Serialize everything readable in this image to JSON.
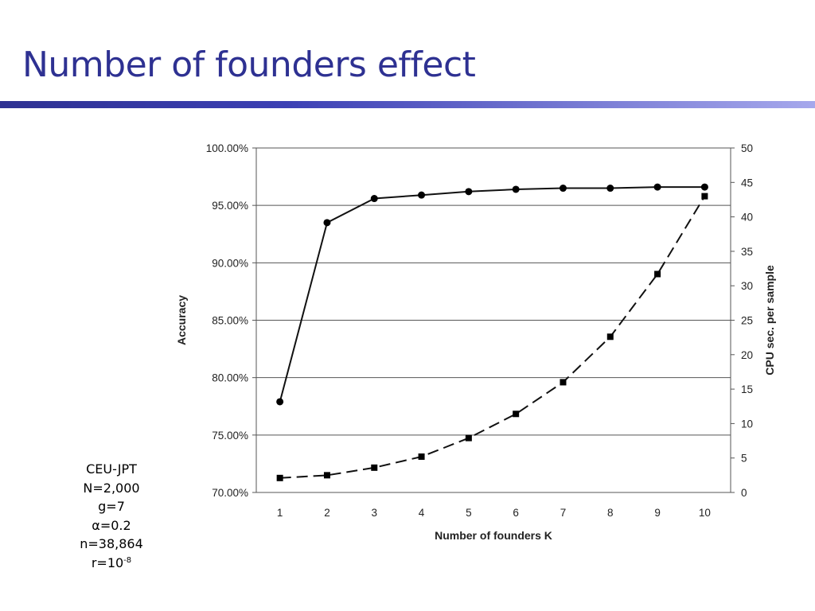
{
  "slide": {
    "title": "Number of founders effect",
    "accent_color": "#2e3192"
  },
  "params": {
    "population": "CEU-JPT",
    "n_label": "N=2,000",
    "g_label": "g=7",
    "alpha_symbol": "α",
    "alpha_value": "=0.2",
    "markers_label": "n=38,864",
    "r_base": "r=10",
    "r_exponent": "-8"
  },
  "chart_data": {
    "type": "line",
    "xlabel": "Number of founders K",
    "ylabel_left": "Accuracy",
    "ylabel_right": "CPU sec. per sample",
    "x": [
      1,
      2,
      3,
      4,
      5,
      6,
      7,
      8,
      9,
      10
    ],
    "left_axis": {
      "range": [
        70,
        100
      ],
      "ticks": [
        70,
        75,
        80,
        85,
        90,
        95,
        100
      ],
      "tick_labels": [
        "70.00%",
        "75.00%",
        "80.00%",
        "85.00%",
        "90.00%",
        "95.00%",
        "100.00%"
      ]
    },
    "right_axis": {
      "range": [
        0,
        50
      ],
      "ticks": [
        0,
        5,
        10,
        15,
        20,
        25,
        30,
        35,
        40,
        45,
        50
      ],
      "tick_labels": [
        "0",
        "5",
        "10",
        "15",
        "20",
        "25",
        "30",
        "35",
        "40",
        "45",
        "50"
      ]
    },
    "grid": true,
    "series": [
      {
        "axis": "left",
        "style": "solid",
        "marker": "circle",
        "values": [
          77.9,
          93.5,
          95.6,
          95.9,
          96.2,
          96.4,
          96.5,
          96.5,
          96.6,
          96.6
        ]
      },
      {
        "axis": "right",
        "style": "dashed",
        "marker": "square",
        "values": [
          2.1,
          2.5,
          3.6,
          5.2,
          7.9,
          11.4,
          16.0,
          22.6,
          31.7,
          43.0
        ]
      }
    ]
  }
}
